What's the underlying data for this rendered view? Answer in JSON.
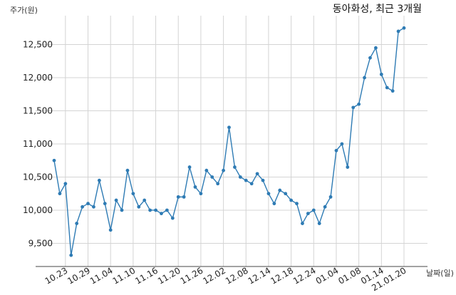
{
  "chart_data": {
    "type": "line",
    "title": "동아화성, 최근 3개월",
    "ylabel": "주가(원)",
    "xlabel": "날짜(일)",
    "ylim": [
      9150,
      12850
    ],
    "yticks": [
      9500,
      10000,
      10500,
      11000,
      11500,
      12000,
      12500
    ],
    "ytick_labels": [
      "9,500",
      "10,000",
      "10,500",
      "11,000",
      "11,500",
      "12,000",
      "12,500"
    ],
    "xtick_labels": [
      "10.23",
      "10.29",
      "11.04",
      "11.10",
      "11.16",
      "11.20",
      "11.26",
      "12.02",
      "12.08",
      "12.14",
      "12.18",
      "12.24",
      "01.04",
      "01.08",
      "01.14",
      "21.01.20"
    ],
    "xtick_index": [
      2,
      6,
      10,
      14,
      18,
      22,
      26,
      30,
      34,
      38,
      42,
      46,
      50,
      54,
      58,
      62
    ],
    "grid": true,
    "line_color": "#2e7bb4",
    "series": [
      {
        "name": "",
        "values": [
          10750,
          10250,
          10400,
          9320,
          9800,
          10050,
          10100,
          10050,
          10450,
          10100,
          9700,
          10150,
          10000,
          10600,
          10250,
          10050,
          10150,
          10000,
          10000,
          9950,
          10000,
          9880,
          10200,
          10200,
          10650,
          10350,
          10250,
          10600,
          10500,
          10400,
          10600,
          11250,
          10650,
          10500,
          10450,
          10400,
          10550,
          10450,
          10250,
          10100,
          10300,
          10250,
          10150,
          10100,
          9800,
          9950,
          10000,
          9800,
          10050,
          10200,
          10900,
          11000,
          10650,
          11550,
          11600,
          12000,
          12300,
          12450,
          12050,
          11850,
          11800,
          12700,
          12750
        ]
      }
    ]
  }
}
